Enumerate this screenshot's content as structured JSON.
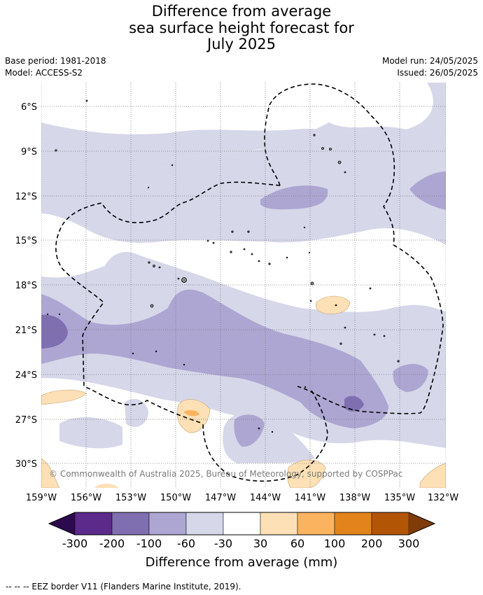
{
  "title": {
    "line1": "Difference from average",
    "line2": "sea surface height forecast for",
    "line3": "July 2025"
  },
  "meta": {
    "base_period": "Base period: 1981-2018",
    "model": "Model: ACCESS-S2",
    "model_run": "Model run: 24/05/2025",
    "issued": "Issued: 26/05/2025"
  },
  "map": {
    "lat_labels": [
      "6°S",
      "9°S",
      "12°S",
      "15°S",
      "18°S",
      "21°S",
      "24°S",
      "27°S",
      "30°S"
    ],
    "lon_labels": [
      "159°W",
      "156°W",
      "153°W",
      "150°W",
      "147°W",
      "144°W",
      "141°W",
      "138°W",
      "135°W",
      "132°W"
    ],
    "copyright": "© Commonwealth of Australia 2025, Bureau of Meteorology, supported by COSPPac"
  },
  "colorbar": {
    "ticks": [
      "-300",
      "-200",
      "-100",
      "-60",
      "-30",
      "30",
      "60",
      "100",
      "200",
      "300"
    ],
    "label": "Difference from average (mm)",
    "colors": [
      "#2d0a4e",
      "#5b2a8a",
      "#7f6fb0",
      "#ada6d2",
      "#d6d7e9",
      "#ffffff",
      "#fde0b6",
      "#fbb35f",
      "#e2841b",
      "#b25606",
      "#7f3b08"
    ]
  },
  "footer": {
    "text": "--  --  -- EEZ border V11 (Flanders Marine Institute, 2019)."
  }
}
